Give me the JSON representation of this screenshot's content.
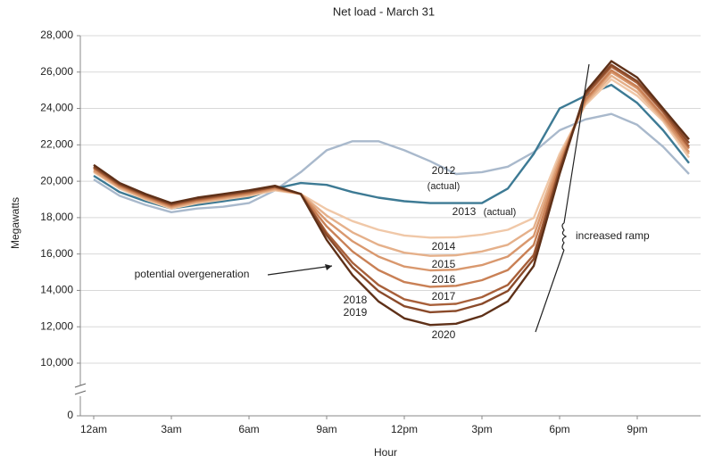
{
  "chart_data": {
    "type": "line",
    "title": "Net load - March 31",
    "x_label": "Hour",
    "y_label": "Megawatts",
    "categories": [
      "12am",
      null,
      null,
      "3am",
      null,
      null,
      "6am",
      null,
      null,
      "9am",
      null,
      null,
      "12pm",
      null,
      null,
      "3pm",
      null,
      null,
      "6pm",
      null,
      null,
      "9pm",
      null,
      null
    ],
    "ylim": [
      10000,
      28000
    ],
    "axis_break": true,
    "yticks": [
      {
        "value": 28000,
        "label": "28,000"
      },
      {
        "value": 26000,
        "label": "26,000"
      },
      {
        "value": 24000,
        "label": "24,000"
      },
      {
        "value": 22000,
        "label": "22,000"
      },
      {
        "value": 20000,
        "label": "20,000"
      },
      {
        "value": 18000,
        "label": "18,000"
      },
      {
        "value": 16000,
        "label": "16,000"
      },
      {
        "value": 14000,
        "label": "14,000"
      },
      {
        "value": 12000,
        "label": "12,000"
      },
      {
        "value": 10000,
        "label": "10,000"
      },
      0
    ],
    "grid": true,
    "series": [
      {
        "name": "2012",
        "note": "(actual)",
        "color": "#a9b9cc",
        "values": [
          20100,
          19200,
          18700,
          18300,
          18500,
          18600,
          18800,
          19500,
          20500,
          21700,
          22200,
          22200,
          21700,
          21100,
          20400,
          20500,
          20800,
          21600,
          22800,
          23400,
          23700,
          23100,
          21900,
          20400
        ]
      },
      {
        "name": "2013",
        "note": "(actual)",
        "color": "#3d7a94",
        "values": [
          20300,
          19400,
          18900,
          18500,
          18700,
          18900,
          19100,
          19600,
          19900,
          19800,
          19400,
          19100,
          18900,
          18800,
          18800,
          18800,
          19600,
          21500,
          24000,
          24700,
          25300,
          24300,
          22800,
          21000
        ]
      },
      {
        "name": "2014",
        "color": "#f0c8a8",
        "values": [
          20500,
          19600,
          19000,
          18500,
          18800,
          19000,
          19200,
          19500,
          19300,
          18460,
          17810,
          17330,
          17020,
          16900,
          16920,
          17070,
          17330,
          17980,
          21500,
          24200,
          25600,
          24700,
          23300,
          21300
        ]
      },
      {
        "name": "2015",
        "color": "#e5b08a",
        "values": [
          20550,
          19650,
          19050,
          18550,
          18850,
          19050,
          19250,
          19550,
          19300,
          18110,
          17190,
          16510,
          16070,
          15900,
          15930,
          16140,
          16510,
          17430,
          21300,
          24300,
          25800,
          24900,
          23400,
          21500
        ]
      },
      {
        "name": "2016",
        "color": "#d9986e",
        "values": [
          20600,
          19700,
          19100,
          18600,
          18900,
          19100,
          19300,
          19600,
          19300,
          17830,
          16700,
          15860,
          15310,
          15100,
          15140,
          15390,
          15860,
          16990,
          21100,
          24400,
          26000,
          25100,
          23500,
          21600
        ]
      },
      {
        "name": "2017",
        "color": "#c98055",
        "values": [
          20700,
          19750,
          19150,
          18650,
          18950,
          19150,
          19350,
          19650,
          19300,
          17520,
          16140,
          15120,
          14460,
          14200,
          14250,
          14560,
          15120,
          16500,
          20900,
          24500,
          26100,
          25200,
          23600,
          21800
        ]
      },
      {
        "name": "2018",
        "color": "#a8603a",
        "values": [
          20750,
          19800,
          19200,
          18700,
          19000,
          19200,
          19400,
          19700,
          19300,
          17170,
          15520,
          14300,
          13510,
          13200,
          13260,
          13630,
          14300,
          15950,
          20700,
          24700,
          26300,
          25400,
          23800,
          21900
        ]
      },
      {
        "name": "2019",
        "color": "#8a4a2a",
        "values": [
          20800,
          19850,
          19250,
          18750,
          19050,
          19250,
          19450,
          19700,
          19300,
          17030,
          15270,
          13970,
          13130,
          12800,
          12870,
          13260,
          13970,
          15730,
          20600,
          24800,
          26400,
          25500,
          23900,
          22100
        ]
      },
      {
        "name": "2020",
        "color": "#5e3018",
        "values": [
          20900,
          19900,
          19300,
          18800,
          19100,
          19300,
          19500,
          19750,
          19300,
          16780,
          14840,
          13400,
          12460,
          12100,
          12170,
          12600,
          13400,
          15340,
          20400,
          24900,
          26600,
          25700,
          24000,
          22300
        ]
      }
    ],
    "annotations": [
      "potential overgeneration",
      "increased ramp"
    ]
  }
}
